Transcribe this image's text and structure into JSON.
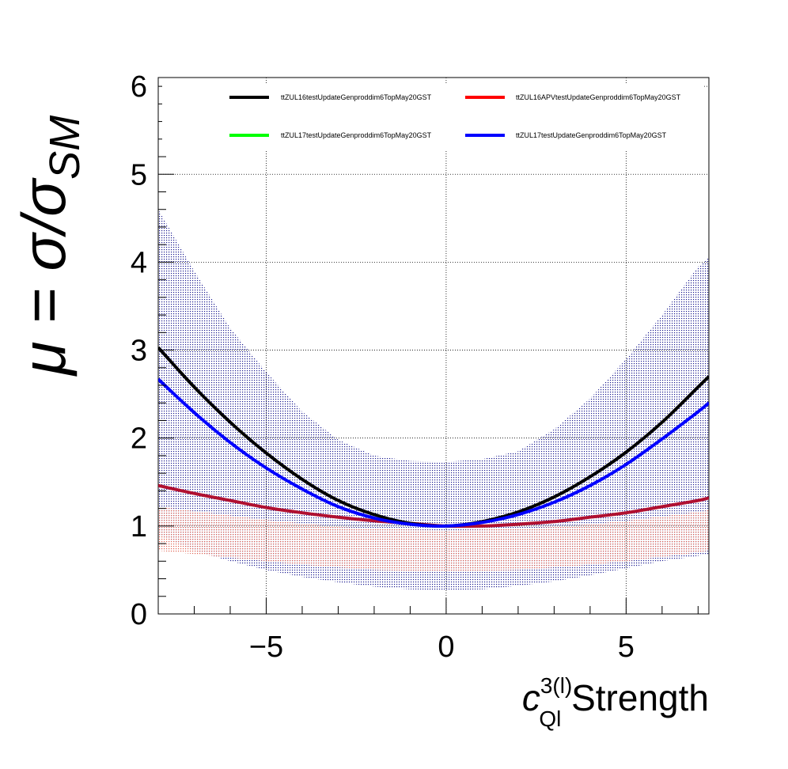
{
  "chart_data": {
    "type": "line",
    "xlabel": {
      "symbol": "c",
      "sup": "3(l)",
      "sub": "Ql",
      "suffix": " Strength"
    },
    "ylabel": "μ = σ/σ_SM",
    "xlim": [
      -8,
      7.3
    ],
    "ylim": [
      0,
      6.1
    ],
    "x_ticks": [
      -5,
      0,
      5
    ],
    "x_tick_labels": [
      "−5",
      "0",
      "5"
    ],
    "y_ticks": [
      0,
      1,
      2,
      3,
      4,
      5,
      6
    ],
    "y_tick_labels": [
      "0",
      "1",
      "2",
      "3",
      "4",
      "5",
      "6"
    ],
    "grid": true,
    "legend_position": "top",
    "x": [
      -8,
      -7,
      -6,
      -5,
      -4,
      -3,
      -2,
      -1,
      0,
      1,
      2,
      3,
      4,
      5,
      6,
      7,
      7.3
    ],
    "series": [
      {
        "name": "ttZUL16testUpdateGenproddim6TopMay20GST",
        "color": "#000000",
        "values": [
          3.03,
          2.58,
          2.18,
          1.83,
          1.53,
          1.29,
          1.13,
          1.03,
          1.0,
          1.05,
          1.16,
          1.33,
          1.56,
          1.84,
          2.18,
          2.58,
          2.7
        ]
      },
      {
        "name": "ttZUL16APVtestUpdateGenproddim6TopMay20GST",
        "color": "#ff0000",
        "values": [
          1.46,
          1.37,
          1.29,
          1.21,
          1.15,
          1.1,
          1.06,
          1.03,
          1.0,
          1.0,
          1.02,
          1.05,
          1.1,
          1.15,
          1.22,
          1.29,
          1.32
        ]
      },
      {
        "name": "ttZUL17testUpdateGenproddim6TopMay20GST",
        "color": "#00ff00",
        "values": [
          1.46,
          1.37,
          1.29,
          1.21,
          1.15,
          1.1,
          1.06,
          1.03,
          1.0,
          1.0,
          1.02,
          1.05,
          1.1,
          1.15,
          1.22,
          1.29,
          1.32
        ]
      },
      {
        "name": "ttZUL17testUpdateGenproddim6TopMay20GST",
        "color": "#0000ff",
        "values": [
          2.67,
          2.29,
          1.95,
          1.66,
          1.42,
          1.22,
          1.09,
          1.02,
          1.0,
          1.04,
          1.13,
          1.27,
          1.46,
          1.7,
          1.99,
          2.3,
          2.4
        ]
      }
    ],
    "bands": [
      {
        "name": "ttZUL17testUpdateGenproddim6TopMay20GST band",
        "color": "#2020a0",
        "upper": [
          4.6,
          3.9,
          3.25,
          2.75,
          2.3,
          1.98,
          1.8,
          1.74,
          1.73,
          1.76,
          1.85,
          2.1,
          2.45,
          2.9,
          3.4,
          3.95,
          4.05
        ],
        "lower": [
          0.9,
          0.72,
          0.6,
          0.5,
          0.42,
          0.36,
          0.31,
          0.28,
          0.27,
          0.28,
          0.32,
          0.37,
          0.44,
          0.52,
          0.6,
          0.66,
          0.68
        ]
      },
      {
        "name": "ttZUL16APVtestUpdateGenproddim6TopMay20GST band",
        "color": "#e87060",
        "upper": [
          1.22,
          1.17,
          1.12,
          1.07,
          1.03,
          0.99,
          0.97,
          0.96,
          0.95,
          0.96,
          0.97,
          0.99,
          1.02,
          1.06,
          1.11,
          1.16,
          1.18
        ],
        "lower": [
          0.72,
          0.68,
          0.64,
          0.6,
          0.56,
          0.53,
          0.5,
          0.49,
          0.48,
          0.49,
          0.5,
          0.53,
          0.56,
          0.6,
          0.65,
          0.7,
          0.72
        ]
      }
    ]
  }
}
